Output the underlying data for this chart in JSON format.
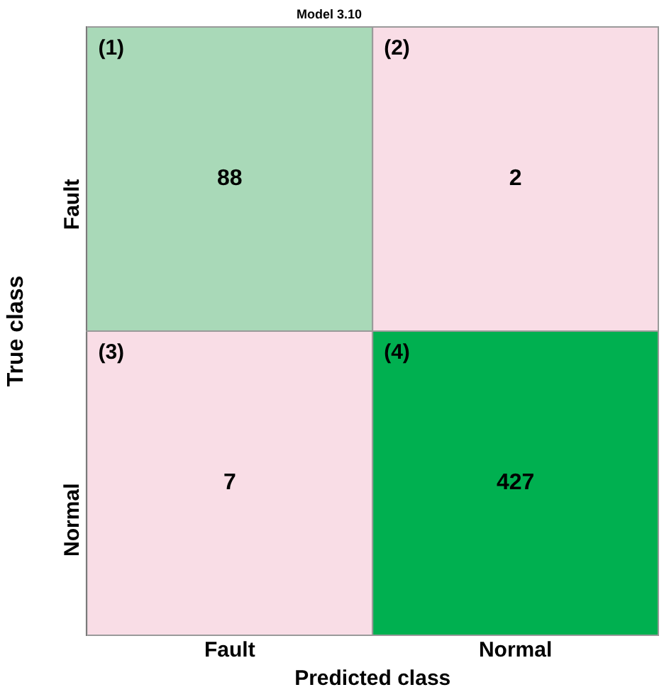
{
  "chart_data": {
    "type": "heatmap",
    "title": "Model 3.10",
    "xlabel": "Predicted class",
    "ylabel": "True class",
    "categories": [
      "Fault",
      "Normal"
    ],
    "y_categories": [
      "Fault",
      "Normal"
    ],
    "cells": [
      [
        88,
        2
      ],
      [
        7,
        427
      ]
    ],
    "colors": [
      [
        "#a9d9b8",
        "#f9dde6"
      ],
      [
        "#f9dde6",
        "#00b050"
      ]
    ],
    "data_labels": true,
    "annotations": [
      "(1)",
      "(2)",
      "(3)",
      "(4)"
    ]
  }
}
